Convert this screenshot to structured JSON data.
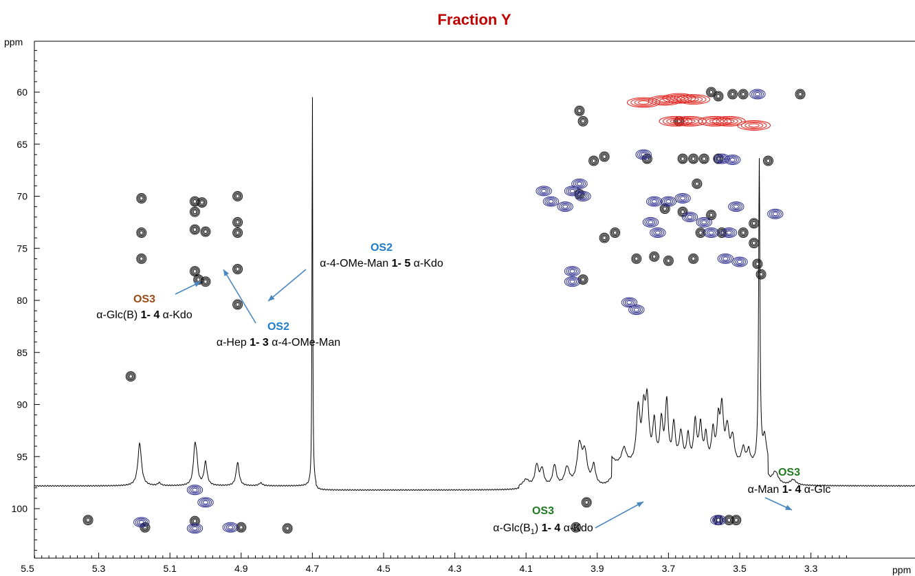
{
  "chart_data": {
    "type": "contour",
    "title": "Fraction Y",
    "title_color": "#c00000",
    "x_axis": {
      "label": "ppm",
      "range": [
        5.5,
        3.2
      ],
      "reversed": true,
      "ticks": [
        "5.5",
        "5.3",
        "5.1",
        "4.9",
        "4.7",
        "4.5",
        "4.3",
        "4.1",
        "3.9",
        "3.7",
        "3.5",
        "3.3"
      ]
    },
    "y_axis": {
      "label": "ppm",
      "range": [
        55.5,
        105.5
      ],
      "reversed": true,
      "ticks": [
        "60",
        "65",
        "70",
        "75",
        "80",
        "85",
        "90",
        "95",
        "100"
      ]
    },
    "grid": false,
    "colors": {
      "black": "#111111",
      "blue": "#2a2a8c",
      "red": "#e0201a",
      "os2": "#1f7cc9",
      "os3_brown": "#9a4a14",
      "os3_green": "#1f7a1f",
      "arrow": "#4a86c0"
    },
    "peaks": [
      {
        "x": 5.18,
        "y": 70.2,
        "c": "black"
      },
      {
        "x": 5.18,
        "y": 73.5,
        "c": "black"
      },
      {
        "x": 5.18,
        "y": 76.0,
        "c": "black"
      },
      {
        "x": 5.03,
        "y": 70.5,
        "c": "black"
      },
      {
        "x": 5.03,
        "y": 71.5,
        "c": "black"
      },
      {
        "x": 5.01,
        "y": 70.6,
        "c": "black"
      },
      {
        "x": 5.03,
        "y": 73.2,
        "c": "black"
      },
      {
        "x": 5.0,
        "y": 73.4,
        "c": "black"
      },
      {
        "x": 5.03,
        "y": 77.2,
        "c": "black"
      },
      {
        "x": 5.02,
        "y": 78.0,
        "c": "black"
      },
      {
        "x": 5.0,
        "y": 78.2,
        "c": "black"
      },
      {
        "x": 4.91,
        "y": 70.0,
        "c": "black"
      },
      {
        "x": 4.91,
        "y": 72.5,
        "c": "black"
      },
      {
        "x": 4.91,
        "y": 73.5,
        "c": "black"
      },
      {
        "x": 4.91,
        "y": 77.0,
        "c": "black"
      },
      {
        "x": 4.91,
        "y": 80.4,
        "c": "black"
      },
      {
        "x": 5.21,
        "y": 87.3,
        "c": "black"
      },
      {
        "x": 5.33,
        "y": 101.1,
        "c": "black"
      },
      {
        "x": 5.17,
        "y": 101.8,
        "c": "black"
      },
      {
        "x": 5.03,
        "y": 101.2,
        "c": "black"
      },
      {
        "x": 4.9,
        "y": 101.8,
        "c": "black"
      },
      {
        "x": 4.77,
        "y": 101.9,
        "c": "black"
      },
      {
        "x": 3.95,
        "y": 61.8,
        "c": "black"
      },
      {
        "x": 3.94,
        "y": 62.8,
        "c": "black"
      },
      {
        "x": 3.88,
        "y": 66.2,
        "c": "black"
      },
      {
        "x": 3.91,
        "y": 66.6,
        "c": "black"
      },
      {
        "x": 3.95,
        "y": 69.8,
        "c": "black"
      },
      {
        "x": 3.88,
        "y": 74.0,
        "c": "black"
      },
      {
        "x": 3.85,
        "y": 73.5,
        "c": "black"
      },
      {
        "x": 3.94,
        "y": 78.0,
        "c": "black"
      },
      {
        "x": 3.93,
        "y": 99.4,
        "c": "black"
      },
      {
        "x": 3.96,
        "y": 101.8,
        "c": "black"
      },
      {
        "x": 3.58,
        "y": 60.0,
        "c": "black"
      },
      {
        "x": 3.56,
        "y": 60.4,
        "c": "black"
      },
      {
        "x": 3.52,
        "y": 60.2,
        "c": "black"
      },
      {
        "x": 3.49,
        "y": 60.2,
        "c": "black"
      },
      {
        "x": 3.33,
        "y": 60.2,
        "c": "black"
      },
      {
        "x": 3.67,
        "y": 62.8,
        "c": "black"
      },
      {
        "x": 3.76,
        "y": 66.4,
        "c": "black"
      },
      {
        "x": 3.66,
        "y": 66.4,
        "c": "black"
      },
      {
        "x": 3.63,
        "y": 66.4,
        "c": "black"
      },
      {
        "x": 3.6,
        "y": 66.4,
        "c": "black"
      },
      {
        "x": 3.56,
        "y": 66.4,
        "c": "black"
      },
      {
        "x": 3.42,
        "y": 66.6,
        "c": "black"
      },
      {
        "x": 3.62,
        "y": 68.8,
        "c": "black"
      },
      {
        "x": 3.71,
        "y": 71.2,
        "c": "black"
      },
      {
        "x": 3.66,
        "y": 71.5,
        "c": "black"
      },
      {
        "x": 3.58,
        "y": 71.8,
        "c": "black"
      },
      {
        "x": 3.61,
        "y": 73.5,
        "c": "black"
      },
      {
        "x": 3.55,
        "y": 73.5,
        "c": "black"
      },
      {
        "x": 3.49,
        "y": 73.5,
        "c": "black"
      },
      {
        "x": 3.46,
        "y": 72.6,
        "c": "black"
      },
      {
        "x": 3.46,
        "y": 74.5,
        "c": "black"
      },
      {
        "x": 3.74,
        "y": 75.8,
        "c": "black"
      },
      {
        "x": 3.7,
        "y": 76.2,
        "c": "black"
      },
      {
        "x": 3.79,
        "y": 76.0,
        "c": "black"
      },
      {
        "x": 3.63,
        "y": 76.0,
        "c": "black"
      },
      {
        "x": 3.45,
        "y": 76.5,
        "c": "black"
      },
      {
        "x": 3.44,
        "y": 77.5,
        "c": "black"
      },
      {
        "x": 3.56,
        "y": 101.1,
        "c": "black"
      },
      {
        "x": 3.53,
        "y": 101.1,
        "c": "black"
      },
      {
        "x": 3.51,
        "y": 101.1,
        "c": "black"
      },
      {
        "x": 5.03,
        "y": 98.2,
        "c": "blue"
      },
      {
        "x": 5.0,
        "y": 99.4,
        "c": "blue"
      },
      {
        "x": 5.18,
        "y": 101.3,
        "c": "blue"
      },
      {
        "x": 5.03,
        "y": 101.9,
        "c": "blue"
      },
      {
        "x": 4.93,
        "y": 101.8,
        "c": "blue"
      },
      {
        "x": 4.05,
        "y": 69.5,
        "c": "blue"
      },
      {
        "x": 4.03,
        "y": 70.5,
        "c": "blue"
      },
      {
        "x": 3.97,
        "y": 69.5,
        "c": "blue"
      },
      {
        "x": 3.94,
        "y": 70.0,
        "c": "blue"
      },
      {
        "x": 3.95,
        "y": 68.8,
        "c": "blue"
      },
      {
        "x": 3.99,
        "y": 71.0,
        "c": "blue"
      },
      {
        "x": 3.97,
        "y": 77.2,
        "c": "blue"
      },
      {
        "x": 3.97,
        "y": 78.2,
        "c": "blue"
      },
      {
        "x": 3.81,
        "y": 80.2,
        "c": "blue"
      },
      {
        "x": 3.79,
        "y": 80.9,
        "c": "blue"
      },
      {
        "x": 3.77,
        "y": 66.0,
        "c": "blue"
      },
      {
        "x": 3.74,
        "y": 70.5,
        "c": "blue"
      },
      {
        "x": 3.7,
        "y": 70.5,
        "c": "blue"
      },
      {
        "x": 3.66,
        "y": 70.2,
        "c": "blue"
      },
      {
        "x": 3.75,
        "y": 72.5,
        "c": "blue"
      },
      {
        "x": 3.73,
        "y": 73.5,
        "c": "blue"
      },
      {
        "x": 3.64,
        "y": 72.0,
        "c": "blue"
      },
      {
        "x": 3.6,
        "y": 72.5,
        "c": "blue"
      },
      {
        "x": 3.58,
        "y": 73.5,
        "c": "blue"
      },
      {
        "x": 3.53,
        "y": 73.5,
        "c": "blue"
      },
      {
        "x": 3.51,
        "y": 71.0,
        "c": "blue"
      },
      {
        "x": 3.55,
        "y": 66.4,
        "c": "blue"
      },
      {
        "x": 3.52,
        "y": 66.5,
        "c": "blue"
      },
      {
        "x": 3.45,
        "y": 60.2,
        "c": "blue"
      },
      {
        "x": 3.54,
        "y": 76.0,
        "c": "blue"
      },
      {
        "x": 3.5,
        "y": 76.3,
        "c": "blue"
      },
      {
        "x": 3.4,
        "y": 71.7,
        "c": "blue"
      },
      {
        "x": 3.56,
        "y": 101.1,
        "c": "blue"
      },
      {
        "x": 3.67,
        "y": 60.6,
        "c": "red"
      },
      {
        "x": 3.71,
        "y": 60.8,
        "c": "red"
      },
      {
        "x": 3.63,
        "y": 60.7,
        "c": "red"
      },
      {
        "x": 3.77,
        "y": 61.0,
        "c": "red"
      },
      {
        "x": 3.68,
        "y": 62.8,
        "c": "red"
      },
      {
        "x": 3.64,
        "y": 62.8,
        "c": "red"
      },
      {
        "x": 3.57,
        "y": 62.8,
        "c": "red"
      },
      {
        "x": 3.53,
        "y": 62.8,
        "c": "red"
      },
      {
        "x": 3.46,
        "y": 63.2,
        "c": "red"
      }
    ],
    "annotations": [
      {
        "tag": "OS2",
        "tag_color": "os2",
        "pre": "α-4-OMe-Man ",
        "link": "1- 5",
        "post": " α-Kdo"
      },
      {
        "tag": "OS3",
        "tag_color": "os3_brown",
        "pre": "α-Glc(B) ",
        "link": "1- 4",
        "post": " α-Kdo"
      },
      {
        "tag": "OS2",
        "tag_color": "os2",
        "pre": "α-Hep ",
        "link": "1- 3",
        "post": " α-4-OMe-Man"
      },
      {
        "tag": "OS3",
        "tag_color": "os3_green",
        "pre": "α-Glc(B",
        "sub": "1",
        "pre2": ") ",
        "link": "1- 4",
        "post": " α-Kdo"
      },
      {
        "tag": "OS3",
        "tag_color": "os3_green",
        "pre": "α-Man ",
        "link": "1- 4",
        "post": " α-Glc"
      }
    ]
  }
}
